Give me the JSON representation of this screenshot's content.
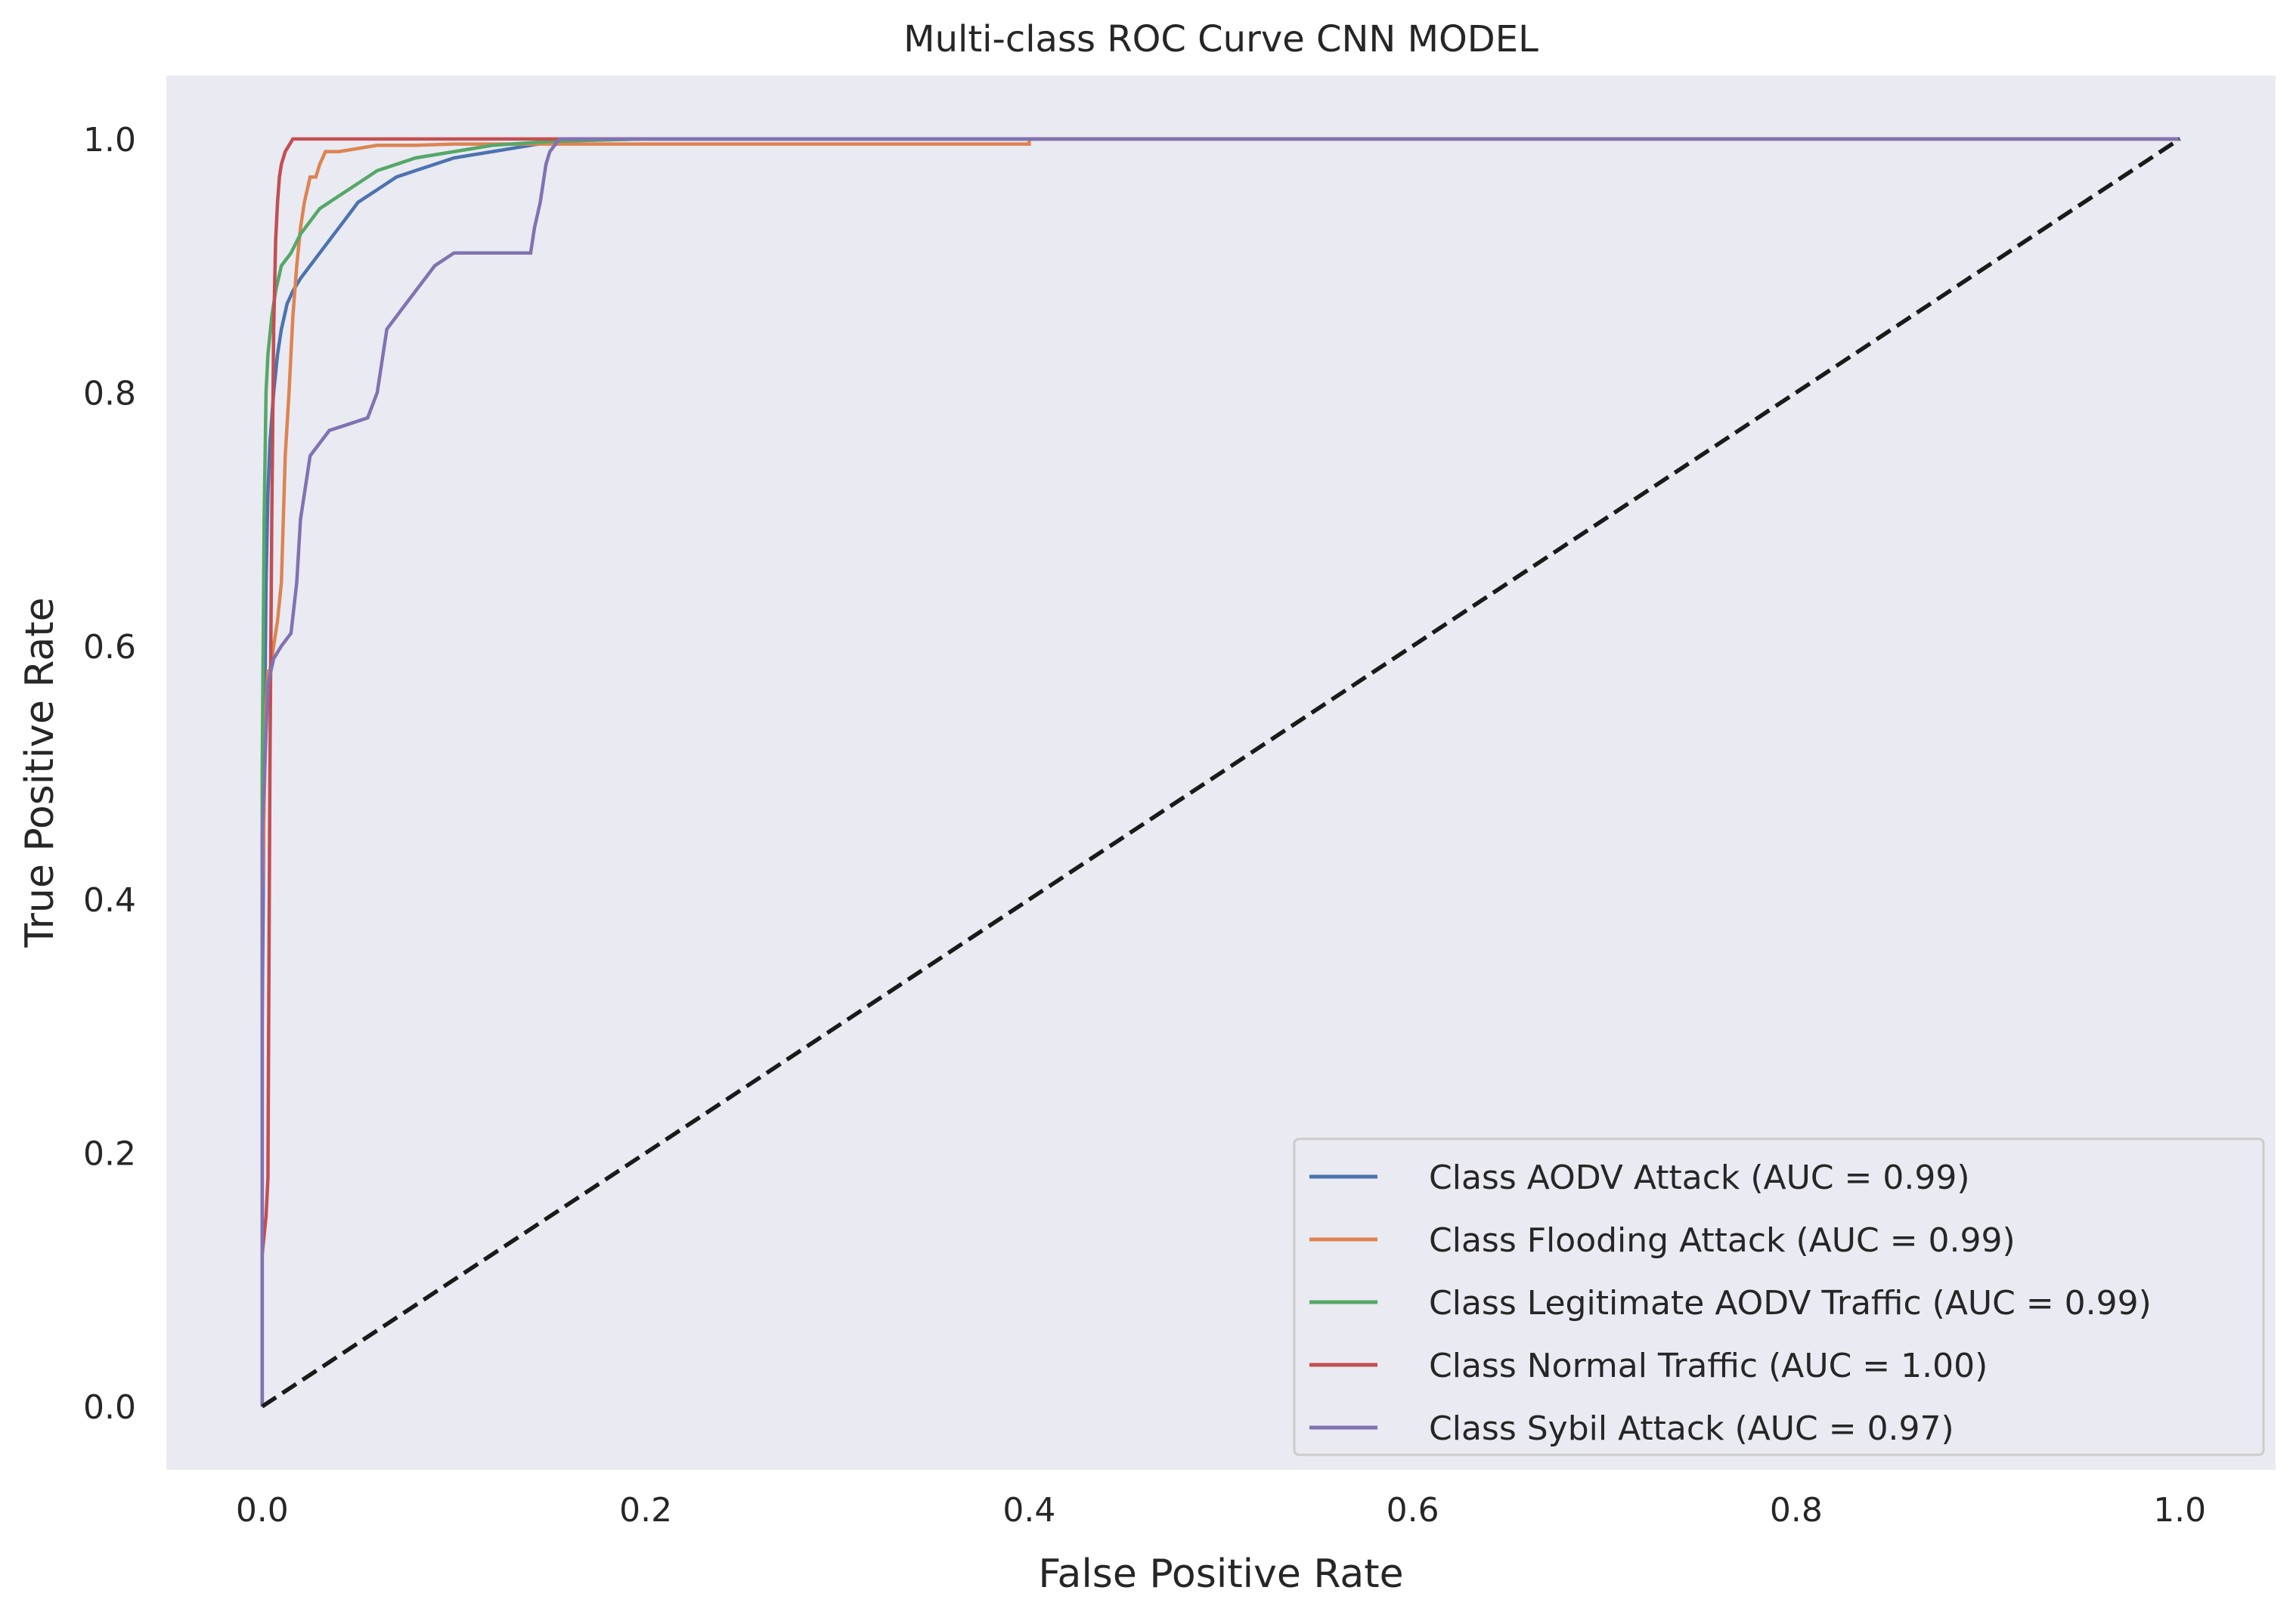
{
  "chart_data": {
    "type": "line",
    "title": "Multi-class ROC Curve CNN MODEL",
    "xlabel": "False Positive Rate",
    "ylabel": "True Positive Rate",
    "xlim": [
      -0.05,
      1.05
    ],
    "ylim": [
      -0.05,
      1.05
    ],
    "xticks": [
      "0.0",
      "0.2",
      "0.4",
      "0.6",
      "0.8",
      "1.0"
    ],
    "yticks": [
      "0.0",
      "0.2",
      "0.4",
      "0.6",
      "0.8",
      "1.0"
    ],
    "grid": false,
    "background_color": "#eaeaf2",
    "legend_position": "lower-right",
    "series": [
      {
        "name": "Class AODV Attack (AUC = 0.99)",
        "color": "#4c72b0",
        "x": [
          0,
          0.0,
          0.001,
          0.002,
          0.003,
          0.004,
          0.006,
          0.008,
          0.01,
          0.013,
          0.016,
          0.02,
          0.025,
          0.03,
          0.035,
          0.04,
          0.045,
          0.05,
          0.06,
          0.07,
          0.08,
          0.09,
          0.1,
          0.12,
          0.14,
          0.16,
          0.2,
          0.4,
          0.63,
          1.0
        ],
        "y": [
          0,
          0.3,
          0.5,
          0.65,
          0.72,
          0.76,
          0.8,
          0.83,
          0.85,
          0.87,
          0.88,
          0.89,
          0.9,
          0.91,
          0.92,
          0.93,
          0.94,
          0.95,
          0.96,
          0.97,
          0.975,
          0.98,
          0.985,
          0.99,
          0.995,
          1.0,
          1.0,
          1.0,
          1.0,
          1.0
        ]
      },
      {
        "name": "Class Flooding Attack (AUC = 0.99)",
        "color": "#dd8452",
        "x": [
          0,
          0.0,
          0.002,
          0.003,
          0.004,
          0.006,
          0.008,
          0.01,
          0.012,
          0.014,
          0.016,
          0.018,
          0.02,
          0.022,
          0.025,
          0.028,
          0.03,
          0.033,
          0.04,
          0.06,
          0.08,
          0.1,
          0.2,
          0.3,
          0.4,
          0.4,
          1.0
        ],
        "y": [
          0,
          0.4,
          0.55,
          0.58,
          0.58,
          0.6,
          0.62,
          0.65,
          0.75,
          0.8,
          0.86,
          0.9,
          0.93,
          0.95,
          0.97,
          0.97,
          0.98,
          0.99,
          0.99,
          0.995,
          0.995,
          0.996,
          0.996,
          0.996,
          0.996,
          1.0,
          1.0
        ]
      },
      {
        "name": "Class Legitimate AODV Traffic (AUC = 0.99)",
        "color": "#55a868",
        "x": [
          0,
          0.0,
          0.001,
          0.002,
          0.003,
          0.005,
          0.007,
          0.01,
          0.015,
          0.02,
          0.025,
          0.03,
          0.04,
          0.05,
          0.06,
          0.08,
          0.1,
          0.12,
          0.15,
          0.2,
          0.4,
          1.0
        ],
        "y": [
          0,
          0.5,
          0.7,
          0.8,
          0.83,
          0.86,
          0.88,
          0.9,
          0.91,
          0.925,
          0.935,
          0.945,
          0.955,
          0.965,
          0.975,
          0.985,
          0.99,
          0.995,
          0.998,
          1.0,
          1.0,
          1.0
        ]
      },
      {
        "name": "Class Normal Traffic (AUC = 1.00)",
        "color": "#c44e52",
        "x": [
          0,
          0.0,
          0.002,
          0.003,
          0.004,
          0.005,
          0.006,
          0.007,
          0.008,
          0.009,
          0.01,
          0.012,
          0.014,
          0.016,
          0.02,
          0.1,
          0.2,
          1.0
        ],
        "y": [
          0,
          0.12,
          0.15,
          0.18,
          0.5,
          0.7,
          0.85,
          0.92,
          0.95,
          0.97,
          0.98,
          0.99,
          0.995,
          1.0,
          1.0,
          1.0,
          1.0,
          1.0
        ]
      },
      {
        "name": "Class Sybil Attack (AUC = 0.97)",
        "color": "#8172b3",
        "x": [
          0,
          0.0,
          0.003,
          0.006,
          0.01,
          0.015,
          0.018,
          0.02,
          0.022,
          0.025,
          0.03,
          0.035,
          0.045,
          0.055,
          0.06,
          0.062,
          0.065,
          0.07,
          0.075,
          0.08,
          0.085,
          0.09,
          0.1,
          0.12,
          0.14,
          0.142,
          0.145,
          0.148,
          0.15,
          0.155,
          0.2,
          0.4,
          0.63,
          1.0
        ],
        "y": [
          0,
          0.45,
          0.57,
          0.59,
          0.6,
          0.61,
          0.65,
          0.7,
          0.72,
          0.75,
          0.76,
          0.77,
          0.775,
          0.78,
          0.8,
          0.82,
          0.85,
          0.86,
          0.87,
          0.88,
          0.89,
          0.9,
          0.91,
          0.91,
          0.91,
          0.93,
          0.95,
          0.98,
          0.99,
          1.0,
          1.0,
          1.0,
          1.0,
          1.0
        ]
      },
      {
        "name": "",
        "color": "#1a1a1a",
        "dashed": true,
        "x": [
          0,
          1
        ],
        "y": [
          0,
          1
        ]
      }
    ]
  }
}
